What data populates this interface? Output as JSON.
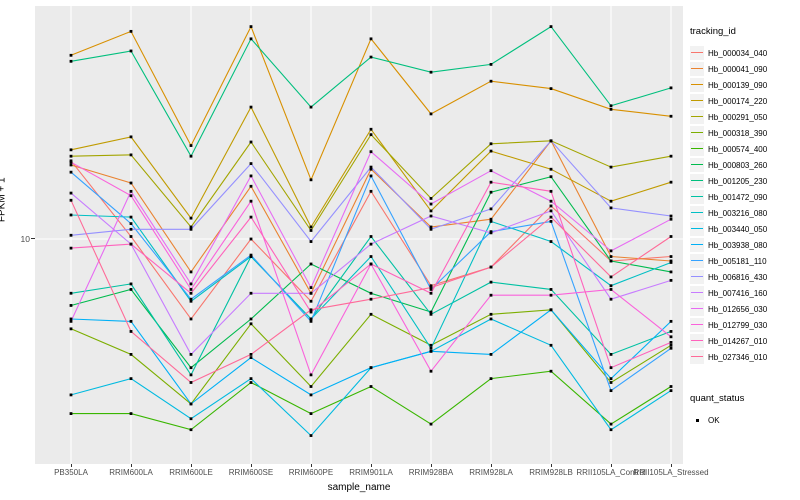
{
  "chart_data": {
    "type": "line",
    "xlabel": "sample_name",
    "ylabel": "FPKM + 1",
    "y_scale": "log10",
    "y_ticks": [
      {
        "value": 10,
        "label": "10"
      }
    ],
    "grid": "major-on",
    "legend_position": "right",
    "categories": [
      "PB350LA",
      "RRIM600LA",
      "RRIM600LE",
      "RRIM600SE",
      "RRIM600PE",
      "RRIM901LA",
      "RRIM928BA",
      "RRIM928LA",
      "RRIM928LB",
      "RRII105LA_Control",
      "RRII105LA_Stressed"
    ],
    "series": [
      {
        "name": "Hb_000034_040",
        "color": "#F8766D",
        "values": [
          18.6,
          10.2,
          5.3,
          10.0,
          6.1,
          14.6,
          6.9,
          8.0,
          13.0,
          8.4,
          8.7
        ]
      },
      {
        "name": "Hb_000041_090",
        "color": "#EA8331",
        "values": [
          18.0,
          15.6,
          7.7,
          15.2,
          6.5,
          17.4,
          11.0,
          11.7,
          21.8,
          8.7,
          8.4
        ]
      },
      {
        "name": "Hb_000139_090",
        "color": "#D89000",
        "values": [
          43.0,
          52.0,
          21.0,
          54.0,
          16.0,
          49.0,
          27.0,
          35.0,
          33.0,
          28.0,
          26.5
        ]
      },
      {
        "name": "Hb_000174_220",
        "color": "#C09B00",
        "values": [
          20.3,
          22.5,
          11.8,
          28.5,
          11.0,
          23.9,
          12.5,
          20.1,
          17.4,
          13.5,
          15.7
        ]
      },
      {
        "name": "Hb_000291_050",
        "color": "#A3A500",
        "values": [
          19.3,
          19.5,
          11.0,
          21.6,
          10.7,
          22.9,
          13.8,
          21.3,
          21.8,
          17.7,
          19.3
        ]
      },
      {
        "name": "Hb_000318_390",
        "color": "#7CAE00",
        "values": [
          4.9,
          4.0,
          2.7,
          5.1,
          3.1,
          5.5,
          4.3,
          5.5,
          5.7,
          3.2,
          4.3
        ]
      },
      {
        "name": "Hb_000574_400",
        "color": "#39B600",
        "values": [
          2.5,
          2.5,
          2.2,
          3.2,
          2.5,
          3.1,
          2.3,
          3.3,
          3.5,
          2.3,
          3.1
        ]
      },
      {
        "name": "Hb_000803_260",
        "color": "#00BB4E",
        "values": [
          5.9,
          6.7,
          3.6,
          5.3,
          8.2,
          6.5,
          5.6,
          14.5,
          16.4,
          8.4,
          7.7
        ]
      },
      {
        "name": "Hb_001205_230",
        "color": "#00BF7D",
        "values": [
          41.0,
          44.5,
          19.3,
          49.0,
          28.5,
          42.4,
          37.6,
          40.0,
          54.0,
          28.8,
          33.2
        ]
      },
      {
        "name": "Hb_001472_090",
        "color": "#00C1A3",
        "values": [
          6.5,
          7.0,
          3.4,
          8.7,
          5.3,
          10.2,
          5.5,
          7.1,
          6.7,
          4.0,
          4.8
        ]
      },
      {
        "name": "Hb_003216_080",
        "color": "#00BFC4",
        "values": [
          12.1,
          11.9,
          6.1,
          8.7,
          5.3,
          8.7,
          4.2,
          11.5,
          9.8,
          6.9,
          8.3
        ]
      },
      {
        "name": "Hb_003440_050",
        "color": "#00BAE0",
        "values": [
          2.9,
          3.3,
          2.4,
          3.3,
          2.1,
          3.6,
          4.1,
          5.3,
          4.3,
          2.2,
          3.0
        ]
      },
      {
        "name": "Hb_003938_080",
        "color": "#00B0F6",
        "values": [
          5.3,
          5.2,
          2.7,
          3.9,
          2.9,
          3.6,
          4.1,
          4.0,
          5.7,
          3.3,
          5.2
        ]
      },
      {
        "name": "Hb_005181_110",
        "color": "#35A2FF",
        "values": [
          17.0,
          11.3,
          6.2,
          8.8,
          5.2,
          16.5,
          6.7,
          10.6,
          11.5,
          3.0,
          4.2
        ]
      },
      {
        "name": "Hb_006816_430",
        "color": "#9590FF",
        "values": [
          10.3,
          10.8,
          10.8,
          18.2,
          9.8,
          17.7,
          10.8,
          12.7,
          21.8,
          12.8,
          12.0
        ]
      },
      {
        "name": "Hb_007416_160",
        "color": "#C77CFF",
        "values": [
          14.4,
          9.6,
          4.0,
          6.5,
          6.5,
          9.6,
          12.0,
          10.5,
          12.5,
          6.2,
          7.2
        ]
      },
      {
        "name": "Hb_012656_030",
        "color": "#E76BF3",
        "values": [
          5.2,
          14.6,
          7.0,
          16.5,
          6.8,
          20.0,
          13.2,
          17.2,
          13.5,
          9.1,
          11.7
        ]
      },
      {
        "name": "Hb_012799_030",
        "color": "#FA62DB",
        "values": [
          18.4,
          14.1,
          6.7,
          13.5,
          3.4,
          8.2,
          3.5,
          6.4,
          6.4,
          6.7,
          4.6
        ]
      },
      {
        "name": "Hb_014267_010",
        "color": "#FF62BC",
        "values": [
          9.3,
          9.6,
          6.5,
          11.9,
          5.6,
          8.2,
          6.5,
          15.7,
          14.6,
          3.6,
          4.4
        ]
      },
      {
        "name": "Hb_027346_010",
        "color": "#FF6A98",
        "values": [
          13.6,
          4.8,
          3.2,
          4.0,
          5.7,
          6.2,
          6.8,
          8.0,
          11.9,
          7.4,
          10.2
        ]
      }
    ]
  },
  "legend": {
    "title": "tracking_id",
    "quant_title": "quant_status",
    "quant_items": [
      {
        "label": "OK"
      }
    ]
  },
  "colors": {
    "panel_bg": "#EBEBEB",
    "gridline": "#FFFFFF",
    "point": "#000000",
    "axis_text": "#4D4D4D",
    "legend_key_bg": "#F2F2F2"
  }
}
